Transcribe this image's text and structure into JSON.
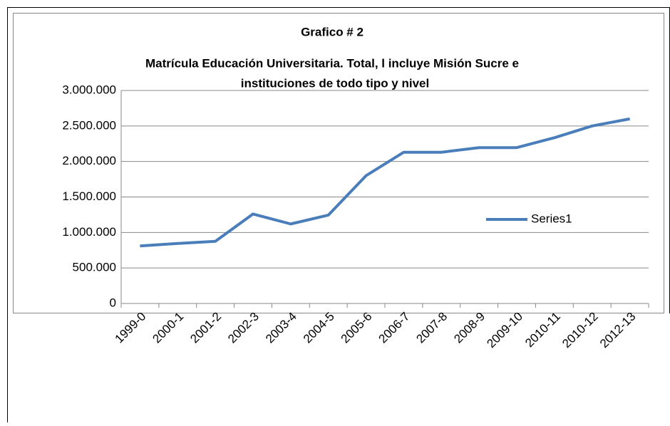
{
  "chart_data": {
    "type": "line",
    "title": [
      "Grafico # 2",
      "Matrícula Educación Universitaria. Total, l incluye Misión Sucre e",
      "instituciones de todo tipo y nivel"
    ],
    "categories": [
      "1999-0",
      "2000-1",
      "2001-2",
      "2002-3",
      "2003-4",
      "2004-5",
      "2005-6",
      "2006-7",
      "2007-8",
      "2008-9",
      "2009-10",
      "2010-11",
      "2010-12",
      "2012-13"
    ],
    "series": [
      {
        "name": "Series1",
        "color": "#4a7ebb",
        "values": [
          810000,
          845000,
          875000,
          1260000,
          1120000,
          1245000,
          1800000,
          2130000,
          2130000,
          2195000,
          2195000,
          2335000,
          2500000,
          2600000
        ]
      }
    ],
    "ylim": [
      0,
      3000000
    ],
    "yticks": [
      0,
      {
        "value": 500000,
        "label": "500.000"
      },
      {
        "value": 1000000,
        "label": "1.000.000"
      },
      {
        "value": 1500000,
        "label": "1.500.000"
      },
      {
        "value": 2000000,
        "label": "2.000.000"
      },
      {
        "value": 2500000,
        "label": "2.500.000"
      },
      {
        "value": 3000000,
        "label": "3.000.000"
      }
    ],
    "grid": true,
    "legend": "right"
  }
}
